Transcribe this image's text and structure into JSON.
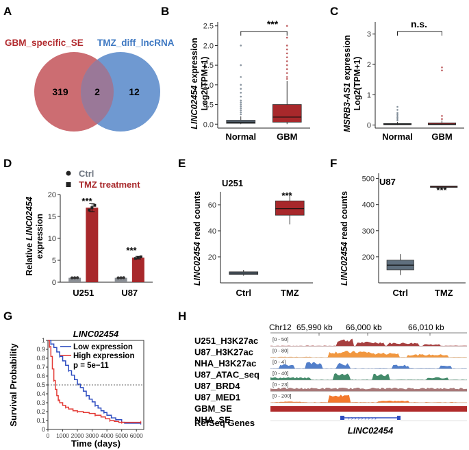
{
  "panels": {
    "A": {
      "letter": "A",
      "set1_label": "GBM_specific_SE",
      "set2_label": "TMZ_diff_lncRNA",
      "left_only": "319",
      "overlap": "2",
      "right_only": "12",
      "colors": {
        "set1": "#cc6d72",
        "set2": "#6f99d1",
        "overlap": "#9a7898",
        "set1_text": "#b22a2e",
        "set2_text": "#3e78c2"
      }
    },
    "B": {
      "letter": "B",
      "gene": "LINC02454",
      "ylabel_suffix": " expression",
      "ylabel2": "Log2(TPM+1)",
      "significance": "***"
    },
    "C": {
      "letter": "C",
      "gene": "MSRB3-AS1",
      "ylabel_suffix": " expression",
      "ylabel2": "Log2(TPM+1)",
      "significance": "n.s."
    },
    "D": {
      "letter": "D",
      "legend": [
        "Ctrl",
        "TMZ treatment"
      ],
      "ylabel_prefix": "Relative ",
      "gene": "LINC02454",
      "ylabel2": "expression",
      "significance": [
        "***",
        "***"
      ]
    },
    "E": {
      "letter": "E",
      "cell_line": "U251",
      "gene": "LINC02454",
      "ylabel_suffix": " read counts",
      "significance": "***"
    },
    "F": {
      "letter": "F",
      "cell_line": "U87",
      "gene": "LINC02454",
      "ylabel_suffix": " read counts",
      "significance": "***"
    },
    "G": {
      "letter": "G",
      "title": "LINC02454",
      "legend": [
        "Low expression",
        "High expression"
      ],
      "pvalue": "p = 5e−11",
      "ylabel": "Survival Probability",
      "xlabel": "Time (days)"
    },
    "H": {
      "letter": "H",
      "chrom": "Chr12",
      "coords": [
        "65,990 kb",
        "66,000 kb",
        "66,010 kb"
      ],
      "tracks": [
        {
          "name": "U251_H3K27ac",
          "range": "[0 - 50]",
          "color": "#9c2a2a"
        },
        {
          "name": "U87_H3K27ac",
          "range": "[0 - 80]",
          "color": "#f08c2a"
        },
        {
          "name": "NHA_H3K27ac",
          "range": "[0 - 4]",
          "color": "#3f71c4"
        },
        {
          "name": "U87_ATAC_seq",
          "range": "[0 - 40]",
          "color": "#2f7d5a"
        },
        {
          "name": "U87_BRD4",
          "range": "[0 - 23]",
          "color": "#9e6a6a"
        },
        {
          "name": "U87_MED1",
          "range": "[0 - 200]",
          "color": "#f26a16"
        },
        {
          "name": "GBM_SE",
          "range": "",
          "color": "#b02a2a"
        },
        {
          "name": "NHA_SE",
          "range": "",
          "color": "#b02a2a"
        }
      ],
      "refseq_label": "RefSeq Genes",
      "gene_label": "LINC02454"
    }
  },
  "chart_data": [
    {
      "id": "B",
      "type": "box",
      "categories": [
        "Normal",
        "GBM"
      ],
      "ylim": [
        -0.1,
        2.6
      ],
      "yticks": [
        0.0,
        0.5,
        1.0,
        1.5,
        2.0,
        2.5
      ],
      "boxes": [
        {
          "q1": 0.02,
          "median": 0.05,
          "q3": 0.1,
          "lo": 0.0,
          "hi": 0.2,
          "outliers": [
            0.25,
            0.3,
            0.35,
            0.4,
            0.45,
            0.5,
            0.55,
            0.6,
            0.7,
            0.8,
            0.9,
            1.0,
            1.2,
            1.5,
            2.0
          ],
          "color": "#5f6f7e"
        },
        {
          "q1": 0.05,
          "median": 0.18,
          "q3": 0.5,
          "lo": 0.0,
          "hi": 1.1,
          "outliers": [
            1.15,
            1.2,
            1.3,
            1.4,
            1.5,
            1.6,
            1.7,
            1.8,
            1.9,
            2.0,
            2.2,
            2.5
          ],
          "color": "#a8282b"
        }
      ]
    },
    {
      "id": "C",
      "type": "box",
      "categories": [
        "Normal",
        "GBM"
      ],
      "ylim": [
        -0.1,
        3.4
      ],
      "yticks": [
        0,
        1,
        2,
        3
      ],
      "boxes": [
        {
          "q1": 0.01,
          "median": 0.03,
          "q3": 0.05,
          "lo": 0.0,
          "hi": 0.1,
          "outliers": [
            0.15,
            0.2,
            0.25,
            0.3,
            0.35,
            0.4,
            0.5,
            0.6
          ],
          "color": "#5f6f7e"
        },
        {
          "q1": 0.01,
          "median": 0.03,
          "q3": 0.07,
          "lo": 0.0,
          "hi": 0.15,
          "outliers": [
            0.2,
            0.3,
            1.8,
            1.9
          ],
          "color": "#a8282b"
        }
      ]
    },
    {
      "id": "D",
      "type": "bar",
      "categories": [
        "U251",
        "U87"
      ],
      "series": [
        {
          "name": "Ctrl",
          "values": [
            1.0,
            1.0
          ],
          "err": [
            0.1,
            0.1
          ],
          "color": "#8a8e94"
        },
        {
          "name": "TMZ treatment",
          "values": [
            17.0,
            5.6
          ],
          "err": [
            0.9,
            0.3
          ],
          "color": "#a8282b"
        }
      ],
      "ylim": [
        0,
        20
      ],
      "yticks": [
        0,
        5,
        10,
        15,
        20
      ]
    },
    {
      "id": "E",
      "type": "box",
      "categories": [
        "Ctrl",
        "TMZ"
      ],
      "ylim": [
        0,
        70
      ],
      "yticks": [
        20,
        40,
        60
      ],
      "boxes": [
        {
          "q1": 6.5,
          "median": 7.5,
          "q3": 8.5,
          "lo": 5.5,
          "hi": 10,
          "outliers": [],
          "color": "#5f6f7e"
        },
        {
          "q1": 52,
          "median": 57,
          "q3": 63,
          "lo": 45,
          "hi": 70,
          "outliers": [],
          "color": "#a8282b"
        }
      ]
    },
    {
      "id": "F",
      "type": "box",
      "categories": [
        "Ctrl",
        "TMZ"
      ],
      "ylim": [
        100,
        520
      ],
      "yticks": [
        200,
        300,
        400,
        500
      ],
      "boxes": [
        {
          "q1": 150,
          "median": 168,
          "q3": 187,
          "lo": 130,
          "hi": 210,
          "outliers": [],
          "color": "#5f6f7e"
        },
        {
          "q1": 466,
          "median": 468,
          "q3": 471,
          "lo": 466,
          "hi": 471,
          "outliers": [],
          "color": "#a8282b"
        }
      ]
    },
    {
      "id": "G",
      "type": "line",
      "xlim": [
        0,
        6500
      ],
      "ylim": [
        0,
        1
      ],
      "xticks": [
        0,
        1000,
        2000,
        3000,
        4000,
        5000,
        6000
      ],
      "yticks": [
        0,
        0.1,
        0.2,
        0.3,
        0.4,
        0.5,
        0.6,
        0.7,
        0.8,
        0.9,
        1.0
      ],
      "hline": 0.5,
      "series": [
        {
          "name": "Low expression",
          "color": "#2d4cc0",
          "x": [
            0,
            200,
            400,
            600,
            800,
            1000,
            1200,
            1400,
            1600,
            1800,
            2000,
            2200,
            2400,
            2600,
            2800,
            3000,
            3200,
            3400,
            3600,
            3800,
            4000,
            4300,
            4600,
            5000,
            5200,
            6300
          ],
          "y": [
            1.0,
            0.96,
            0.92,
            0.87,
            0.82,
            0.77,
            0.72,
            0.66,
            0.61,
            0.56,
            0.51,
            0.47,
            0.43,
            0.38,
            0.34,
            0.31,
            0.27,
            0.24,
            0.21,
            0.19,
            0.16,
            0.13,
            0.11,
            0.08,
            0.07,
            0.07
          ]
        },
        {
          "name": "High expression",
          "color": "#e33a35",
          "x": [
            0,
            100,
            200,
            300,
            400,
            500,
            600,
            700,
            800,
            1000,
            1200,
            1400,
            1700,
            2000,
            2400,
            2800,
            3200,
            3600,
            3900,
            4200,
            4500,
            4800,
            5000,
            5500,
            6000,
            6300
          ],
          "y": [
            1.0,
            0.93,
            0.82,
            0.68,
            0.55,
            0.45,
            0.38,
            0.33,
            0.3,
            0.27,
            0.25,
            0.23,
            0.21,
            0.2,
            0.19,
            0.18,
            0.16,
            0.14,
            0.12,
            0.1,
            0.09,
            0.08,
            0.08,
            0.08,
            0.08,
            0.08
          ]
        }
      ]
    }
  ]
}
